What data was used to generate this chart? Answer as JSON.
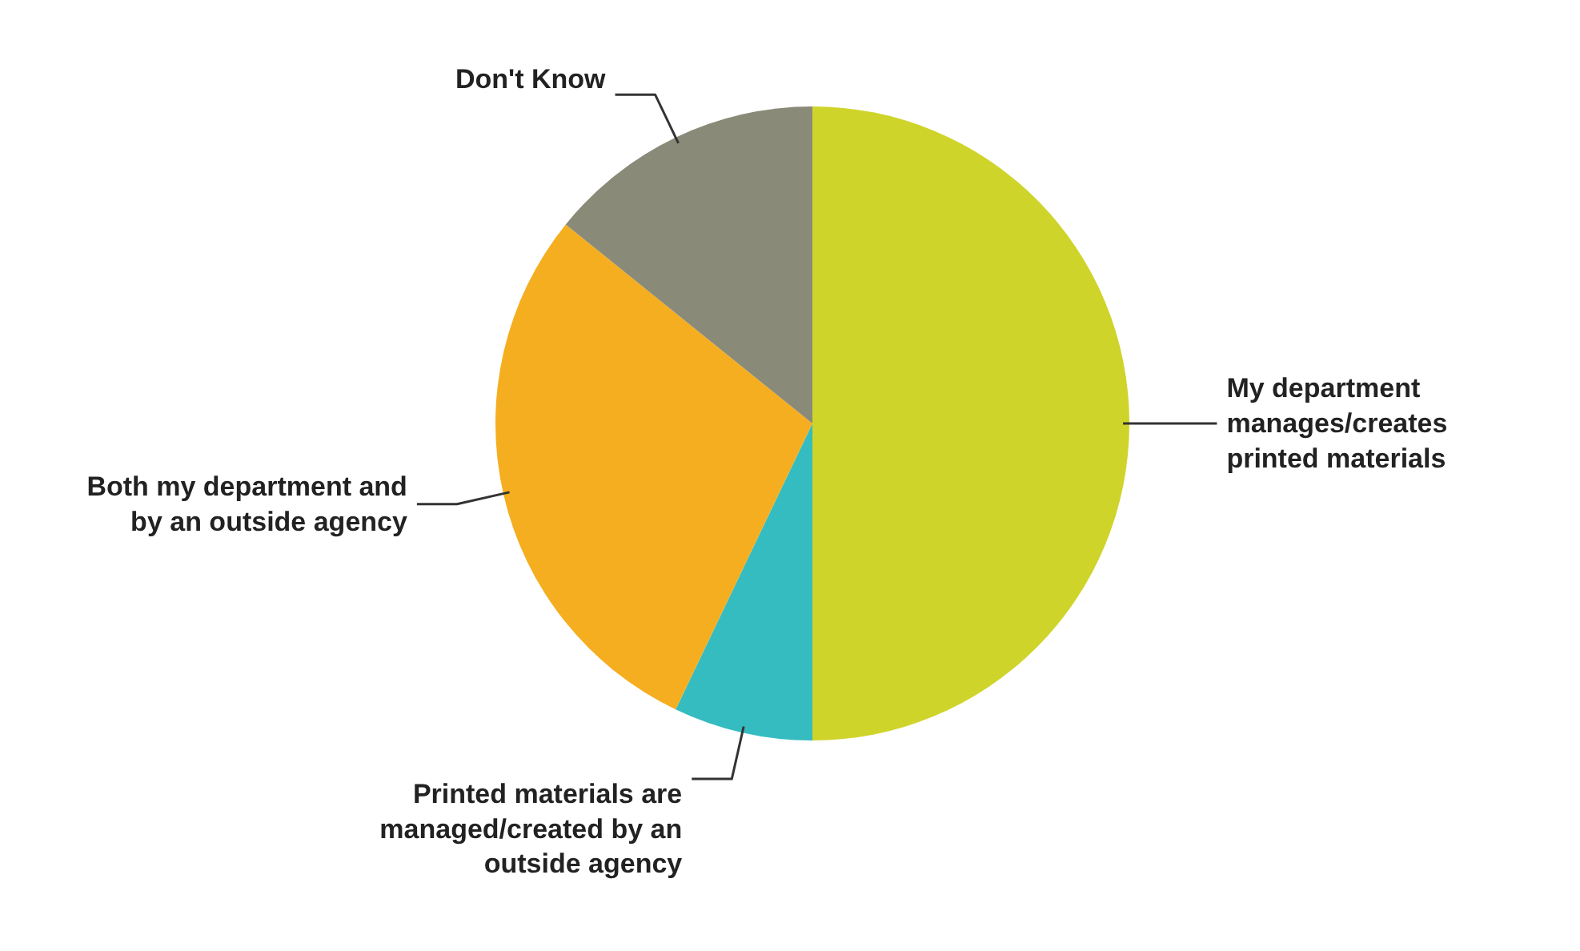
{
  "chart_data": {
    "type": "pie",
    "categories": [
      "My department manages/creates printed materials",
      "Printed materials are managed/created by an outside agency",
      "Both my department and by an outside agency",
      "Don't Know"
    ],
    "values": [
      50,
      7.1,
      28.7,
      14.2
    ],
    "colors": [
      "#cfd42a",
      "#35bcc0",
      "#f5ae1f",
      "#8a8a78"
    ],
    "legend": false
  }
}
